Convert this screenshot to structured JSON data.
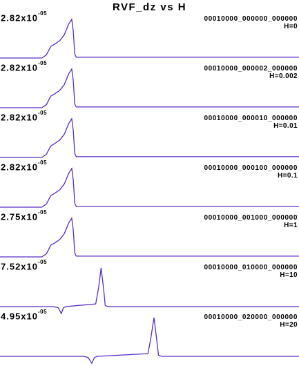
{
  "chart_data": {
    "type": "line",
    "title": "RVF_dz vs H",
    "xlabel": "",
    "ylabel": "",
    "series_color": "#5b2cc6",
    "panels": [
      {
        "peak_label": "2.82x10",
        "peak_exponent": "-05",
        "run_id": "00010000_000000_000000",
        "h_label": "H=0",
        "profile": [
          [
            0,
            0
          ],
          [
            0.14,
            0
          ],
          [
            0.155,
            0.08
          ],
          [
            0.17,
            0.3
          ],
          [
            0.185,
            0.37
          ],
          [
            0.2,
            0.45
          ],
          [
            0.215,
            0.6
          ],
          [
            0.23,
            0.88
          ],
          [
            0.24,
            1.0
          ],
          [
            0.245,
            0.7
          ],
          [
            0.25,
            0.1
          ],
          [
            0.255,
            0.02
          ],
          [
            1,
            0.02
          ]
        ]
      },
      {
        "peak_label": "2.82x10",
        "peak_exponent": "-05",
        "run_id": "00010000_000002_000000",
        "h_label": "H=0.002",
        "profile": [
          [
            0,
            0
          ],
          [
            0.14,
            0
          ],
          [
            0.155,
            0.08
          ],
          [
            0.17,
            0.3
          ],
          [
            0.185,
            0.37
          ],
          [
            0.2,
            0.45
          ],
          [
            0.215,
            0.6
          ],
          [
            0.23,
            0.88
          ],
          [
            0.24,
            1.0
          ],
          [
            0.245,
            0.7
          ],
          [
            0.25,
            0.1
          ],
          [
            0.255,
            0.02
          ],
          [
            1,
            0.02
          ]
        ]
      },
      {
        "peak_label": "2.82x10",
        "peak_exponent": "-05",
        "run_id": "00010000_000010_000000",
        "h_label": "H=0.01",
        "profile": [
          [
            0,
            0
          ],
          [
            0.14,
            0
          ],
          [
            0.155,
            0.08
          ],
          [
            0.17,
            0.3
          ],
          [
            0.185,
            0.37
          ],
          [
            0.2,
            0.45
          ],
          [
            0.215,
            0.6
          ],
          [
            0.23,
            0.88
          ],
          [
            0.24,
            1.0
          ],
          [
            0.245,
            0.7
          ],
          [
            0.25,
            0.1
          ],
          [
            0.255,
            0.02
          ],
          [
            1,
            0.02
          ]
        ]
      },
      {
        "peak_label": "2.82x10",
        "peak_exponent": "-05",
        "run_id": "00010000_000100_000000",
        "h_label": "H=0.1",
        "profile": [
          [
            0,
            0
          ],
          [
            0.14,
            0
          ],
          [
            0.155,
            0.08
          ],
          [
            0.17,
            0.3
          ],
          [
            0.185,
            0.37
          ],
          [
            0.2,
            0.45
          ],
          [
            0.215,
            0.6
          ],
          [
            0.23,
            0.88
          ],
          [
            0.24,
            1.0
          ],
          [
            0.245,
            0.7
          ],
          [
            0.25,
            0.1
          ],
          [
            0.255,
            0.02
          ],
          [
            1,
            0.02
          ]
        ]
      },
      {
        "peak_label": "2.75x10",
        "peak_exponent": "-05",
        "run_id": "00010000_001000_000000",
        "h_label": "H=1",
        "profile": [
          [
            0,
            0
          ],
          [
            0.14,
            0
          ],
          [
            0.155,
            0.08
          ],
          [
            0.17,
            0.3
          ],
          [
            0.185,
            0.37
          ],
          [
            0.2,
            0.45
          ],
          [
            0.215,
            0.6
          ],
          [
            0.23,
            0.88
          ],
          [
            0.24,
            1.0
          ],
          [
            0.245,
            0.7
          ],
          [
            0.25,
            0.1
          ],
          [
            0.255,
            0.02
          ],
          [
            1,
            0.02
          ]
        ]
      },
      {
        "peak_label": "7.52x10",
        "peak_exponent": "-05",
        "run_id": "00010000_010000_000000",
        "h_label": "H=10",
        "profile": [
          [
            0,
            0
          ],
          [
            0.18,
            0
          ],
          [
            0.195,
            -0.03
          ],
          [
            0.205,
            -0.18
          ],
          [
            0.212,
            -0.03
          ],
          [
            0.22,
            0
          ],
          [
            0.32,
            0.07
          ],
          [
            0.33,
            0.5
          ],
          [
            0.338,
            1.0
          ],
          [
            0.346,
            0.5
          ],
          [
            0.352,
            0.03
          ],
          [
            0.36,
            0
          ],
          [
            1,
            0
          ]
        ]
      },
      {
        "peak_label": "4.95x10",
        "peak_exponent": "-05",
        "run_id": "00010000_020000_000000",
        "h_label": "H=20",
        "profile": [
          [
            0,
            0
          ],
          [
            0.28,
            0
          ],
          [
            0.295,
            -0.03
          ],
          [
            0.307,
            -0.18
          ],
          [
            0.316,
            -0.03
          ],
          [
            0.325,
            0
          ],
          [
            0.495,
            0.07
          ],
          [
            0.505,
            0.5
          ],
          [
            0.515,
            1.0
          ],
          [
            0.523,
            0.5
          ],
          [
            0.53,
            0.03
          ],
          [
            0.54,
            0
          ],
          [
            1,
            0
          ]
        ]
      }
    ]
  }
}
